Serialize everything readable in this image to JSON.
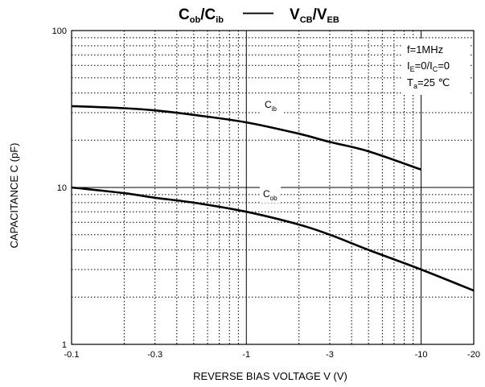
{
  "chart_data": {
    "type": "line",
    "title": {
      "left": {
        "main1": "C",
        "sub1": "ob",
        "sep": "/C",
        "sub2": "ib"
      },
      "dash": "——",
      "right": {
        "main1": "V",
        "sub1": "CB",
        "sep": "/V",
        "sub2": "EB"
      }
    },
    "xlabel": "REVERSE BIAS VOLTAGE    V    (V)",
    "ylabel": "CAPACITANCE    C    (pF)",
    "x_scale": "log",
    "y_scale": "log",
    "xlim": [
      -0.1,
      -20
    ],
    "ylim": [
      1,
      100
    ],
    "x_ticks": [
      "-0.1",
      "-0.3",
      "-1",
      "-3",
      "-10",
      "-20"
    ],
    "y_ticks": [
      "100",
      "10",
      "1"
    ],
    "grid": true,
    "conditions": {
      "f": "f=1MHz",
      "ie_prefix": "I",
      "ie_sub": "E",
      "ie_mid": "=0/I",
      "ic_sub": "C",
      "ic_suffix": "=0",
      "t_prefix": "T",
      "t_sub": "a",
      "t_suffix": "=25 ℃"
    },
    "series": [
      {
        "name": "C_ib",
        "label_main": "C",
        "label_sub": "ib",
        "x": [
          -0.1,
          -0.2,
          -0.3,
          -0.5,
          -1,
          -2,
          -3,
          -5,
          -10
        ],
        "y": [
          33,
          32,
          31,
          29,
          26,
          22,
          19.5,
          17,
          13
        ]
      },
      {
        "name": "C_ob",
        "label_main": "C",
        "label_sub": "ob",
        "x": [
          -0.1,
          -0.2,
          -0.3,
          -0.5,
          -1,
          -2,
          -3,
          -5,
          -10,
          -20
        ],
        "y": [
          10,
          9.2,
          8.6,
          8,
          7,
          5.8,
          5,
          4,
          3,
          2.2
        ]
      }
    ]
  }
}
